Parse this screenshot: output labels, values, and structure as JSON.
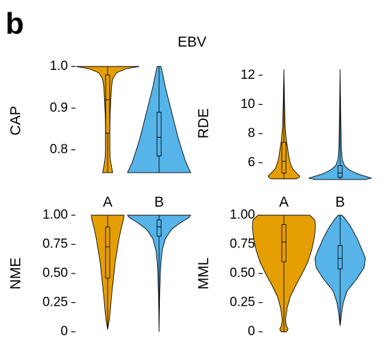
{
  "figure": {
    "panel_label": "b",
    "title": "EBV"
  },
  "colors": {
    "A": "#E69F00",
    "B": "#56B4E9",
    "line": "#000000"
  },
  "chart_data": [
    {
      "type": "violin",
      "ylabel": "CAP",
      "categories": [
        "A",
        "B"
      ],
      "show_category_labels": true,
      "ylim": [
        0.74,
        1.0
      ],
      "yticks": [
        0.8,
        0.9,
        1.0
      ],
      "ytick_labels": [
        "0.8",
        "0.9",
        "1.0"
      ],
      "series": [
        {
          "name": "A",
          "min": 0.745,
          "q1": 0.84,
          "median": 0.92,
          "q3": 0.98,
          "max": 1.0,
          "density": [
            [
              0.745,
              0.16
            ],
            [
              0.76,
              0.12
            ],
            [
              0.78,
              0.08
            ],
            [
              0.8,
              0.07
            ],
            [
              0.83,
              0.07
            ],
            [
              0.86,
              0.07
            ],
            [
              0.89,
              0.08
            ],
            [
              0.92,
              0.1
            ],
            [
              0.95,
              0.12
            ],
            [
              0.97,
              0.16
            ],
            [
              0.985,
              0.28
            ],
            [
              0.995,
              0.6
            ],
            [
              1.0,
              1.0
            ]
          ]
        },
        {
          "name": "B",
          "min": 0.745,
          "q1": 0.785,
          "median": 0.83,
          "q3": 0.89,
          "max": 1.0,
          "density": [
            [
              0.745,
              1.0
            ],
            [
              0.77,
              0.85
            ],
            [
              0.8,
              0.72
            ],
            [
              0.83,
              0.6
            ],
            [
              0.86,
              0.5
            ],
            [
              0.89,
              0.4
            ],
            [
              0.92,
              0.3
            ],
            [
              0.95,
              0.2
            ],
            [
              0.98,
              0.12
            ],
            [
              1.0,
              0.06
            ]
          ]
        }
      ]
    },
    {
      "type": "violin",
      "ylabel": "RDE",
      "categories": [
        "A",
        "B"
      ],
      "show_category_labels": true,
      "ylim": [
        4.8,
        12.6
      ],
      "yticks": [
        6,
        8,
        10,
        12
      ],
      "ytick_labels": [
        "6",
        "8",
        "10",
        "12"
      ],
      "series": [
        {
          "name": "A",
          "min": 4.9,
          "q1": 5.3,
          "median": 6.1,
          "q3": 7.4,
          "max": 12.4,
          "density": [
            [
              4.9,
              0.4
            ],
            [
              5.05,
              0.52
            ],
            [
              5.3,
              0.4
            ],
            [
              5.6,
              0.27
            ],
            [
              6.0,
              0.2
            ],
            [
              6.5,
              0.15
            ],
            [
              7.0,
              0.12
            ],
            [
              7.5,
              0.08
            ],
            [
              8.5,
              0.04
            ],
            [
              10,
              0.02
            ],
            [
              12.4,
              0.0
            ]
          ]
        },
        {
          "name": "B",
          "min": 4.85,
          "q1": 5.0,
          "median": 5.3,
          "q3": 5.8,
          "max": 12.4,
          "density": [
            [
              4.85,
              0.8
            ],
            [
              4.95,
              1.0
            ],
            [
              5.2,
              0.6
            ],
            [
              5.5,
              0.3
            ],
            [
              5.8,
              0.14
            ],
            [
              6.2,
              0.07
            ],
            [
              7.0,
              0.04
            ],
            [
              8.0,
              0.03
            ],
            [
              9.0,
              0.02
            ],
            [
              10.5,
              0.01
            ],
            [
              12.4,
              0.0
            ]
          ]
        }
      ]
    },
    {
      "type": "violin",
      "ylabel": "NME",
      "categories": [
        "A",
        "B"
      ],
      "show_category_labels": false,
      "ylim": [
        0.0,
        1.0
      ],
      "yticks": [
        0.0,
        0.25,
        0.5,
        0.75,
        1.0
      ],
      "ytick_labels": [
        "0",
        "0.25",
        "0.50",
        "0.75",
        "1.00"
      ],
      "series": [
        {
          "name": "A",
          "min": 0.02,
          "q1": 0.46,
          "median": 0.73,
          "q3": 0.9,
          "max": 1.0,
          "density": [
            [
              0.02,
              0.0
            ],
            [
              0.1,
              0.05
            ],
            [
              0.2,
              0.09
            ],
            [
              0.3,
              0.12
            ],
            [
              0.4,
              0.16
            ],
            [
              0.5,
              0.2
            ],
            [
              0.6,
              0.24
            ],
            [
              0.7,
              0.3
            ],
            [
              0.8,
              0.36
            ],
            [
              0.9,
              0.44
            ],
            [
              0.96,
              0.5
            ],
            [
              1.0,
              0.52
            ]
          ]
        },
        {
          "name": "B",
          "min": 0.0,
          "q1": 0.82,
          "median": 0.9,
          "q3": 0.96,
          "max": 1.0,
          "density": [
            [
              0.0,
              0.0
            ],
            [
              0.2,
              0.01
            ],
            [
              0.35,
              0.02
            ],
            [
              0.5,
              0.04
            ],
            [
              0.6,
              0.06
            ],
            [
              0.7,
              0.1
            ],
            [
              0.8,
              0.2
            ],
            [
              0.88,
              0.4
            ],
            [
              0.94,
              0.7
            ],
            [
              0.98,
              0.95
            ],
            [
              1.0,
              1.0
            ]
          ]
        }
      ]
    },
    {
      "type": "violin",
      "ylabel": "MML",
      "categories": [
        "A",
        "B"
      ],
      "show_category_labels": true,
      "ylim": [
        0.0,
        1.0
      ],
      "yticks": [
        0.0,
        0.25,
        0.5,
        0.75,
        1.0
      ],
      "ytick_labels": [
        "0",
        "0.25",
        "0.50",
        "0.75",
        "1.00"
      ],
      "series": [
        {
          "name": "A",
          "min": 0.0,
          "q1": 0.6,
          "median": 0.77,
          "q3": 0.92,
          "max": 1.0,
          "density": [
            [
              0.0,
              0.08
            ],
            [
              0.02,
              0.14
            ],
            [
              0.05,
              0.08
            ],
            [
              0.1,
              0.05
            ],
            [
              0.2,
              0.1
            ],
            [
              0.3,
              0.2
            ],
            [
              0.4,
              0.38
            ],
            [
              0.5,
              0.58
            ],
            [
              0.6,
              0.76
            ],
            [
              0.7,
              0.88
            ],
            [
              0.8,
              0.96
            ],
            [
              0.9,
              1.0
            ],
            [
              0.96,
              0.98
            ],
            [
              1.0,
              0.82
            ]
          ]
        },
        {
          "name": "B",
          "min": 0.05,
          "q1": 0.54,
          "median": 0.63,
          "q3": 0.74,
          "max": 1.0,
          "density": [
            [
              0.05,
              0.0
            ],
            [
              0.15,
              0.04
            ],
            [
              0.25,
              0.1
            ],
            [
              0.35,
              0.22
            ],
            [
              0.45,
              0.52
            ],
            [
              0.55,
              0.76
            ],
            [
              0.63,
              0.8
            ],
            [
              0.7,
              0.7
            ],
            [
              0.8,
              0.54
            ],
            [
              0.9,
              0.34
            ],
            [
              0.97,
              0.16
            ],
            [
              1.0,
              0.06
            ]
          ]
        }
      ]
    }
  ]
}
